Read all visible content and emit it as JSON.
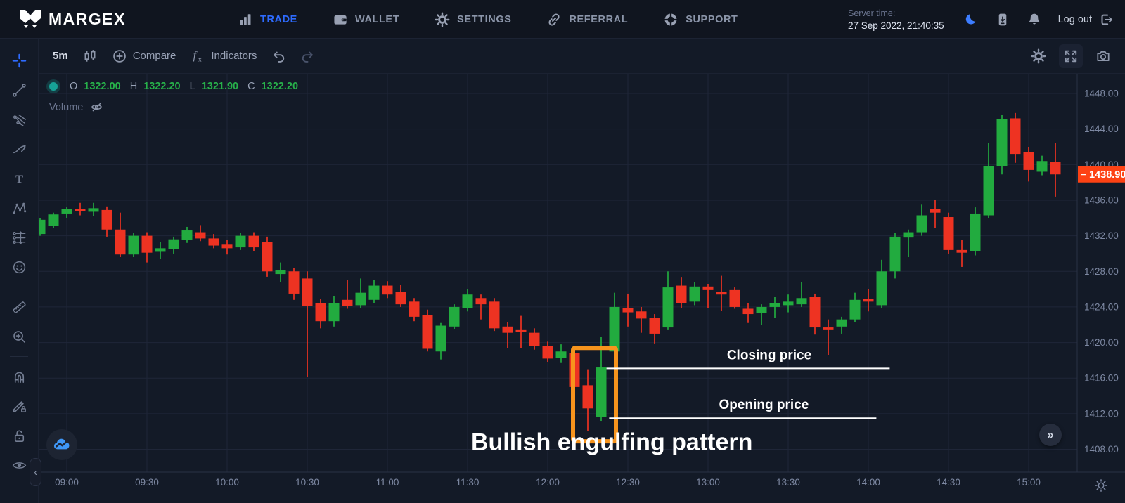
{
  "nav": {
    "brand": "MARGEX",
    "items": [
      {
        "label": "TRADE",
        "icon": "bar-chart-icon",
        "active": true
      },
      {
        "label": "WALLET",
        "icon": "wallet-icon",
        "active": false
      },
      {
        "label": "SETTINGS",
        "icon": "gear-icon",
        "active": false
      },
      {
        "label": "REFERRAL",
        "icon": "link-icon",
        "active": false
      },
      {
        "label": "SUPPORT",
        "icon": "lifebuoy-icon",
        "active": false
      }
    ],
    "server_time_label": "Server time:",
    "server_time_value": "27 Sep 2022, 21:40:35",
    "right_icons": [
      "moon-icon",
      "device-icon",
      "bell-icon"
    ],
    "logout_label": "Log out",
    "logout_icon": "logout-icon"
  },
  "toolbar": {
    "interval": "5m",
    "candles_icon": "candles-icon",
    "compare_icon": "compare-icon",
    "compare_label": "Compare",
    "indicators_icon": "fx-icon",
    "indicators_label": "Indicators",
    "undo_icon": "undo-icon",
    "redo_icon": "redo-icon",
    "right_icons": [
      "gear-icon",
      "expand-icon",
      "camera-icon"
    ]
  },
  "ohlc": {
    "pairs": [
      {
        "k": "O",
        "v": "1322.00"
      },
      {
        "k": "H",
        "v": "1322.20"
      },
      {
        "k": "L",
        "v": "1321.90"
      },
      {
        "k": "C",
        "v": "1322.20"
      }
    ],
    "volume_label": "Volume",
    "volume_icon": "eye-off-icon"
  },
  "sidebar": {
    "tools": [
      "crosshair-icon",
      "trend-line-icon",
      "gann-fan-icon",
      "brush-icon",
      "text-icon",
      "xabcd-icon",
      "projection-icon",
      "emoji-icon",
      "ruler-icon",
      "zoom-in-icon",
      "magnet-icon",
      "draw-lock-icon",
      "lock-icon",
      "eye-icon"
    ]
  },
  "misc": {
    "collapse_chevron": "‹",
    "scroll_right_chevron": "»",
    "watermark_icon": "cloud-chart-icon",
    "axis_settings_icon": "sun-icon"
  },
  "chart_data": {
    "type": "candlestick",
    "interval": "5m",
    "ylim": [
      1406.6,
      1450.4
    ],
    "y_ticks": [
      1448,
      1444,
      1440,
      1436,
      1432,
      1428,
      1424,
      1420,
      1416,
      1412,
      1408
    ],
    "x_ticks": [
      "09:00",
      "09:30",
      "10:00",
      "10:30",
      "11:00",
      "11:30",
      "12:00",
      "12:30",
      "13:00",
      "13:30",
      "14:00",
      "14:30",
      "15:00"
    ],
    "current_price": "1438.90",
    "grid": true,
    "colors": {
      "up": "#22ab3f",
      "down": "#ee3322",
      "price_badge": "#fd4214",
      "highlight": "#f7941d",
      "grid": "#1f2638",
      "axis_line": "#2a3245",
      "axis_text": "#7d88a2"
    },
    "candles": [
      [
        "08:50",
        1432.2,
        1434.0,
        1432.0,
        1433.8
      ],
      [
        "08:55",
        1433.1,
        1434.6,
        1432.9,
        1434.4
      ],
      [
        "09:00",
        1434.5,
        1435.2,
        1434.0,
        1435.0
      ],
      [
        "09:05",
        1435.0,
        1435.7,
        1434.3,
        1434.8
      ],
      [
        "09:10",
        1434.7,
        1435.7,
        1434.2,
        1435.1
      ],
      [
        "09:15",
        1434.9,
        1435.3,
        1431.9,
        1432.7
      ],
      [
        "09:20",
        1432.7,
        1434.6,
        1429.6,
        1429.9
      ],
      [
        "09:25",
        1429.9,
        1432.3,
        1429.6,
        1432.0
      ],
      [
        "09:30",
        1432.0,
        1432.4,
        1429.0,
        1430.1
      ],
      [
        "09:35",
        1430.2,
        1431.3,
        1429.4,
        1430.6
      ],
      [
        "09:40",
        1430.5,
        1431.9,
        1430.0,
        1431.6
      ],
      [
        "09:45",
        1431.5,
        1433.0,
        1431.2,
        1432.6
      ],
      [
        "09:50",
        1432.4,
        1433.2,
        1431.4,
        1431.7
      ],
      [
        "09:55",
        1431.7,
        1432.2,
        1430.6,
        1430.9
      ],
      [
        "10:00",
        1431.0,
        1431.5,
        1429.9,
        1430.6
      ],
      [
        "10:05",
        1430.7,
        1432.3,
        1430.4,
        1432.0
      ],
      [
        "10:10",
        1432.0,
        1432.4,
        1430.3,
        1430.7
      ],
      [
        "10:15",
        1431.3,
        1431.9,
        1427.4,
        1428.0
      ],
      [
        "10:20",
        1427.7,
        1429.0,
        1426.8,
        1428.1
      ],
      [
        "10:25",
        1428.0,
        1428.4,
        1424.8,
        1425.5
      ],
      [
        "10:30",
        1427.2,
        1428.0,
        1416.1,
        1424.1
      ],
      [
        "10:35",
        1424.4,
        1424.9,
        1421.6,
        1422.4
      ],
      [
        "10:40",
        1422.4,
        1425.2,
        1421.8,
        1424.4
      ],
      [
        "10:45",
        1424.8,
        1427.0,
        1423.8,
        1424.1
      ],
      [
        "10:50",
        1424.2,
        1427.2,
        1423.9,
        1425.6
      ],
      [
        "10:55",
        1424.8,
        1427.0,
        1424.4,
        1426.4
      ],
      [
        "11:00",
        1426.4,
        1426.9,
        1425.0,
        1425.4
      ],
      [
        "11:05",
        1425.7,
        1426.5,
        1424.0,
        1424.3
      ],
      [
        "11:10",
        1424.6,
        1425.0,
        1422.4,
        1422.9
      ],
      [
        "11:15",
        1423.1,
        1423.7,
        1419.0,
        1419.3
      ],
      [
        "11:20",
        1419.0,
        1422.2,
        1418.1,
        1421.9
      ],
      [
        "11:25",
        1421.8,
        1424.3,
        1421.5,
        1424.0
      ],
      [
        "11:30",
        1423.9,
        1426.0,
        1423.5,
        1425.4
      ],
      [
        "11:35",
        1425.0,
        1425.4,
        1422.6,
        1424.3
      ],
      [
        "11:40",
        1424.6,
        1425.0,
        1421.3,
        1421.6
      ],
      [
        "11:45",
        1421.8,
        1422.3,
        1419.4,
        1421.1
      ],
      [
        "11:50",
        1421.4,
        1423.0,
        1419.4,
        1421.2
      ],
      [
        "11:55",
        1421.1,
        1421.6,
        1419.2,
        1419.6
      ],
      [
        "12:00",
        1419.6,
        1420.1,
        1417.8,
        1418.2
      ],
      [
        "12:05",
        1418.3,
        1419.8,
        1417.7,
        1419.0
      ],
      [
        "12:10",
        1418.8,
        1419.2,
        1414.6,
        1415.0
      ],
      [
        "12:15",
        1415.2,
        1417.0,
        1410.1,
        1412.6
      ],
      [
        "12:20",
        1411.6,
        1420.6,
        1411.2,
        1417.2
      ],
      [
        "12:25",
        1419.0,
        1425.6,
        1418.5,
        1424.0
      ],
      [
        "12:30",
        1423.9,
        1425.5,
        1421.8,
        1423.4
      ],
      [
        "12:35",
        1423.5,
        1424.0,
        1421.1,
        1422.7
      ],
      [
        "12:40",
        1422.8,
        1423.2,
        1419.9,
        1421.0
      ],
      [
        "12:45",
        1421.7,
        1428.0,
        1421.4,
        1426.2
      ],
      [
        "12:50",
        1426.4,
        1427.3,
        1423.9,
        1424.4
      ],
      [
        "12:55",
        1424.6,
        1426.8,
        1424.2,
        1426.3
      ],
      [
        "13:00",
        1426.3,
        1426.6,
        1423.9,
        1425.9
      ],
      [
        "13:05",
        1425.7,
        1427.5,
        1423.6,
        1425.4
      ],
      [
        "13:10",
        1425.9,
        1426.2,
        1423.8,
        1424.0
      ],
      [
        "13:15",
        1423.8,
        1424.4,
        1422.2,
        1423.2
      ],
      [
        "13:20",
        1423.3,
        1424.3,
        1422.0,
        1424.0
      ],
      [
        "13:25",
        1424.0,
        1425.1,
        1422.8,
        1424.4
      ],
      [
        "13:30",
        1424.2,
        1425.4,
        1423.4,
        1424.6
      ],
      [
        "13:35",
        1424.3,
        1426.8,
        1424.0,
        1425.0
      ],
      [
        "13:40",
        1425.1,
        1425.5,
        1420.9,
        1421.7
      ],
      [
        "13:45",
        1421.7,
        1422.6,
        1418.6,
        1421.4
      ],
      [
        "13:50",
        1421.8,
        1422.9,
        1421.0,
        1422.6
      ],
      [
        "13:55",
        1422.6,
        1425.6,
        1422.3,
        1424.8
      ],
      [
        "14:00",
        1424.9,
        1426.0,
        1423.5,
        1424.6
      ],
      [
        "14:05",
        1424.2,
        1429.3,
        1423.9,
        1428.0
      ],
      [
        "14:10",
        1428.0,
        1432.3,
        1427.2,
        1431.9
      ],
      [
        "14:15",
        1431.8,
        1432.7,
        1429.6,
        1432.4
      ],
      [
        "14:20",
        1432.4,
        1435.5,
        1432.0,
        1434.3
      ],
      [
        "14:25",
        1435.0,
        1436.0,
        1432.9,
        1434.6
      ],
      [
        "14:30",
        1434.1,
        1434.6,
        1430.0,
        1430.4
      ],
      [
        "14:35",
        1430.4,
        1431.5,
        1428.5,
        1430.1
      ],
      [
        "14:40",
        1430.3,
        1435.2,
        1429.8,
        1434.5
      ],
      [
        "14:45",
        1434.3,
        1442.4,
        1434.0,
        1439.8
      ],
      [
        "14:50",
        1439.8,
        1445.6,
        1438.9,
        1445.1
      ],
      [
        "14:55",
        1445.2,
        1445.8,
        1440.2,
        1441.2
      ],
      [
        "15:00",
        1441.4,
        1442.0,
        1438.1,
        1439.4
      ],
      [
        "15:05",
        1439.2,
        1441.0,
        1438.8,
        1440.4
      ],
      [
        "15:10",
        1440.3,
        1442.4,
        1436.4,
        1438.9
      ]
    ],
    "annotations": {
      "highlight_box": {
        "from_candle": "12:15",
        "to_candle": "12:20",
        "price_top": 1419.4,
        "price_bottom": 1408.9
      },
      "closing_line": {
        "label": "Closing price",
        "price": 1417.1,
        "from_time": "12:22",
        "to_time": "14:08"
      },
      "opening_line": {
        "label": "Opening price",
        "price": 1411.5,
        "from_time": "12:23",
        "to_time": "14:03"
      },
      "pattern_label": {
        "text": "Bullish engulfing pattern",
        "center_time": "12:24",
        "price": 1408.8
      }
    }
  }
}
